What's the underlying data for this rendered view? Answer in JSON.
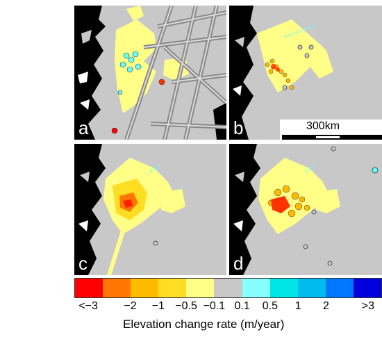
{
  "panels": [
    {
      "label": "a"
    },
    {
      "label": "b"
    },
    {
      "label": "c"
    },
    {
      "label": "d"
    }
  ],
  "scale_bar": {
    "label": "300km"
  },
  "colorbar": {
    "colors": [
      "#ff0000",
      "#ff7700",
      "#ffbb00",
      "#ffdd22",
      "#ffff88",
      "#c8c8c8",
      "#88ffff",
      "#00e6e6",
      "#00bbee",
      "#0077ff",
      "#0000dd"
    ],
    "tick_labels": [
      "<−3",
      "−2",
      "−1",
      "−0.5",
      "−0.1",
      "0.1",
      "0.5",
      "1",
      "2",
      ">3"
    ],
    "title": "Elevation change rate (m/year)"
  }
}
